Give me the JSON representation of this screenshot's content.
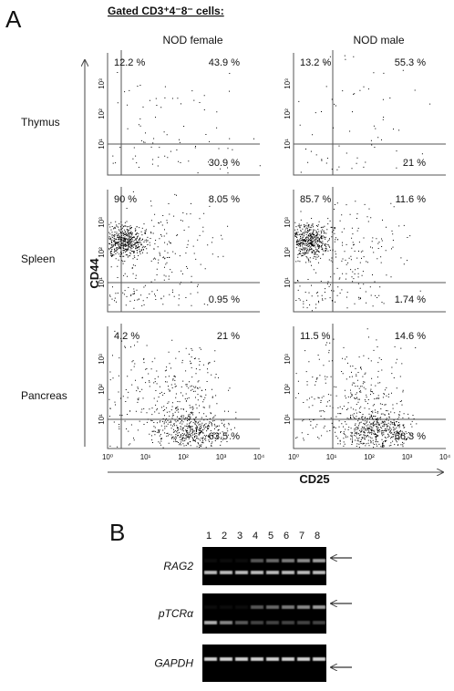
{
  "panel_a": {
    "label": "A",
    "title": "Gated CD3⁺4⁻8⁻ cells:",
    "columns": [
      "NOD female",
      "NOD male"
    ],
    "rows": [
      "Thymus",
      "Spleen",
      "Pancreas"
    ],
    "y_axis_label": "CD44",
    "x_axis_label": "CD25",
    "y_ticks": [
      "10¹",
      "10²",
      "10³"
    ],
    "x_ticks": [
      "10⁰",
      "10¹",
      "10²",
      "10³",
      "10⁴"
    ],
    "quadrants": [
      [
        [
          "12.2 %",
          "43.9 %",
          "30.9 %"
        ],
        [
          "13.2 %",
          "55.3 %",
          "21 %"
        ]
      ],
      [
        [
          "90 %",
          "8.05 %",
          "0.95 %"
        ],
        [
          "85.7 %",
          "11.6 %",
          "1.74 %"
        ]
      ],
      [
        [
          "4.2 %",
          "21 %",
          "63.5 %"
        ],
        [
          "11.5 %",
          "14.6 %",
          "66.3 %"
        ]
      ]
    ]
  },
  "panel_b": {
    "label": "B",
    "lanes": [
      "1",
      "2",
      "3",
      "4",
      "5",
      "6",
      "7",
      "8"
    ],
    "genes": [
      "RAG2",
      "pTCRα",
      "GAPDH"
    ]
  }
}
